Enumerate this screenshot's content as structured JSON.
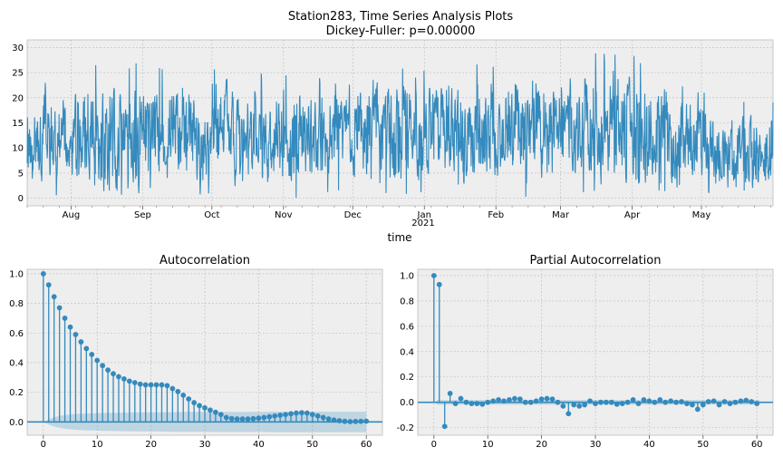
{
  "figure": {
    "title_line1": "Station283, Time Series Analysis Plots",
    "title_line2": "Dickey-Fuller: p=0.00000"
  },
  "colors": {
    "line": "#348ABD",
    "background": "#EEEEEE",
    "grid": "#BBBBBB",
    "confidence_band": "#348ABD"
  },
  "chart_data": [
    {
      "type": "line",
      "title": "Station283, Time Series Analysis Plots\nDickey-Fuller: p=0.00000",
      "xlabel": "time",
      "ylabel": "",
      "x_start": "2020-07-13",
      "x_end": "2021-06-01",
      "sampling": "hourly (approx.)",
      "ylim": [
        -1.5,
        31.5
      ],
      "yticks": [
        0,
        5,
        10,
        15,
        20,
        25,
        30
      ],
      "xtick_labels": [
        "Aug",
        "Sep",
        "Oct",
        "Nov",
        "Dec",
        "Jan",
        "Feb",
        "Mar",
        "Apr",
        "May"
      ],
      "xtick_year_label": "2021",
      "monthly_summary": [
        {
          "month": "Jul",
          "min": 0,
          "max": 24,
          "typical": 12
        },
        {
          "month": "Aug",
          "min": 0,
          "max": 27,
          "typical": 11
        },
        {
          "month": "Sep",
          "min": 0,
          "max": 26,
          "typical": 13
        },
        {
          "month": "Oct",
          "min": 0,
          "max": 25,
          "typical": 12
        },
        {
          "month": "Nov",
          "min": 1,
          "max": 24,
          "typical": 13
        },
        {
          "month": "Dec",
          "min": 0,
          "max": 26,
          "typical": 13
        },
        {
          "month": "Jan",
          "min": 1,
          "max": 27,
          "typical": 13
        },
        {
          "month": "Feb",
          "min": 0,
          "max": 28,
          "typical": 14
        },
        {
          "month": "Mar",
          "min": 0,
          "max": 29,
          "typical": 14
        },
        {
          "month": "Apr",
          "min": 0,
          "max": 27,
          "typical": 12
        },
        {
          "month": "May",
          "min": 1,
          "max": 20,
          "typical": 9
        }
      ],
      "grid": true
    },
    {
      "type": "stem",
      "title": "Autocorrelation",
      "xlim": [
        -3,
        63
      ],
      "ylim": [
        -0.09,
        1.03
      ],
      "xticks": [
        0,
        10,
        20,
        30,
        40,
        50,
        60
      ],
      "yticks": [
        0.0,
        0.2,
        0.4,
        0.6,
        0.8,
        1.0
      ],
      "lags": [
        0,
        1,
        2,
        3,
        4,
        5,
        6,
        7,
        8,
        9,
        10,
        11,
        12,
        13,
        14,
        15,
        16,
        17,
        18,
        19,
        20,
        21,
        22,
        23,
        24,
        25,
        26,
        27,
        28,
        29,
        30,
        31,
        32,
        33,
        34,
        35,
        36,
        37,
        38,
        39,
        40,
        41,
        42,
        43,
        44,
        45,
        46,
        47,
        48,
        49,
        50,
        51,
        52,
        53,
        54,
        55,
        56,
        57,
        58,
        59,
        60
      ],
      "values": [
        1.0,
        0.925,
        0.845,
        0.77,
        0.7,
        0.64,
        0.59,
        0.54,
        0.495,
        0.455,
        0.415,
        0.38,
        0.35,
        0.325,
        0.305,
        0.29,
        0.275,
        0.265,
        0.255,
        0.25,
        0.25,
        0.25,
        0.25,
        0.245,
        0.225,
        0.205,
        0.18,
        0.155,
        0.13,
        0.11,
        0.095,
        0.08,
        0.065,
        0.05,
        0.03,
        0.022,
        0.02,
        0.02,
        0.02,
        0.022,
        0.025,
        0.03,
        0.035,
        0.04,
        0.045,
        0.05,
        0.055,
        0.06,
        0.062,
        0.06,
        0.05,
        0.04,
        0.03,
        0.02,
        0.012,
        0.008,
        0.004,
        0.002,
        0.003,
        0.004,
        0.005
      ],
      "confidence_upper": [
        0.0,
        0.018,
        0.031,
        0.04,
        0.046,
        0.05,
        0.053,
        0.055,
        0.057,
        0.058,
        0.059,
        0.06,
        0.061,
        0.062,
        0.062,
        0.063,
        0.063,
        0.064,
        0.064,
        0.064,
        0.065,
        0.065,
        0.065,
        0.066,
        0.066,
        0.066,
        0.067,
        0.067,
        0.067,
        0.067,
        0.067,
        0.068,
        0.068,
        0.068,
        0.068,
        0.068,
        0.068,
        0.068,
        0.068,
        0.068,
        0.068,
        0.068,
        0.069,
        0.069,
        0.069,
        0.069,
        0.069,
        0.069,
        0.069,
        0.069,
        0.069,
        0.069,
        0.069,
        0.069,
        0.069,
        0.069,
        0.069,
        0.069,
        0.069,
        0.069,
        0.069
      ],
      "grid": true
    },
    {
      "type": "stem",
      "title": "Partial Autocorrelation",
      "xlim": [
        -3,
        63
      ],
      "ylim": [
        -0.26,
        1.05
      ],
      "xticks": [
        0,
        10,
        20,
        30,
        40,
        50,
        60
      ],
      "yticks": [
        -0.2,
        0.0,
        0.2,
        0.4,
        0.6,
        0.8,
        1.0
      ],
      "lags": [
        0,
        1,
        2,
        3,
        4,
        5,
        6,
        7,
        8,
        9,
        10,
        11,
        12,
        13,
        14,
        15,
        16,
        17,
        18,
        19,
        20,
        21,
        22,
        23,
        24,
        25,
        26,
        27,
        28,
        29,
        30,
        31,
        32,
        33,
        34,
        35,
        36,
        37,
        38,
        39,
        40,
        41,
        42,
        43,
        44,
        45,
        46,
        47,
        48,
        49,
        50,
        51,
        52,
        53,
        54,
        55,
        56,
        57,
        58,
        59,
        60
      ],
      "values": [
        1.0,
        0.93,
        -0.19,
        0.07,
        -0.01,
        0.03,
        0.0,
        -0.01,
        -0.01,
        -0.015,
        0.0,
        0.01,
        0.02,
        0.01,
        0.02,
        0.03,
        0.025,
        0.0,
        0.0,
        0.01,
        0.025,
        0.03,
        0.025,
        0.0,
        -0.03,
        -0.09,
        -0.02,
        -0.03,
        -0.02,
        0.01,
        -0.01,
        0.0,
        0.0,
        0.0,
        -0.015,
        -0.01,
        0.0,
        0.02,
        -0.01,
        0.02,
        0.01,
        0.0,
        0.02,
        0.0,
        0.01,
        0.0,
        0.005,
        -0.01,
        -0.02,
        -0.055,
        -0.02,
        0.005,
        0.01,
        -0.02,
        0.005,
        -0.01,
        0.0,
        0.01,
        0.015,
        0.005,
        -0.01
      ],
      "conf_halfwidth": 0.018,
      "grid": true
    }
  ]
}
